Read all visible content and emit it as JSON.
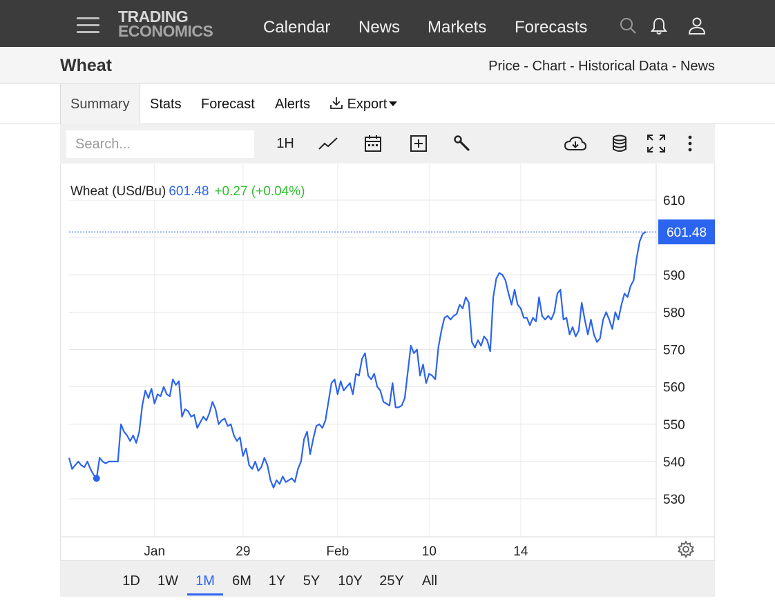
{
  "nav": {
    "logo_line1": "TRADING",
    "logo_line2": "ECONOMICS",
    "links": [
      "Calendar",
      "News",
      "Markets",
      "Forecasts"
    ]
  },
  "header": {
    "title": "Wheat",
    "subnav": "Price - Chart - Historical Data - News"
  },
  "tabs": {
    "summary": "Summary",
    "stats": "Stats",
    "forecast": "Forecast",
    "alerts": "Alerts",
    "export": "Export"
  },
  "toolbar": {
    "search_placeholder": "Search...",
    "interval": "1H"
  },
  "legend": {
    "name": "Wheat (USd/Bu)",
    "value": "601.48",
    "change": "+0.27 (+0.04%)"
  },
  "ranges": [
    "1D",
    "1W",
    "1M",
    "6M",
    "1Y",
    "5Y",
    "10Y",
    "25Y",
    "All"
  ],
  "active_range": "1M",
  "colors": {
    "line": "#2b64ee",
    "change": "#2fbf2f",
    "nav_bg": "#3c3c3c"
  },
  "chart_data": {
    "type": "line",
    "ylim": [
      520,
      620
    ],
    "yticks": [
      530,
      540,
      550,
      560,
      570,
      580,
      590,
      600,
      610
    ],
    "yticks_labeled": [
      "530",
      "540",
      "550",
      "560",
      "570",
      "580",
      "590",
      "610"
    ],
    "x_tick_labels": [
      "Jan",
      "29",
      "Feb",
      "10",
      "14"
    ],
    "x_tick_index": [
      28,
      57,
      88,
      118,
      148
    ],
    "last_value_label": "601.48",
    "last_value": 601.48,
    "series": [
      {
        "values": [
          541,
          538,
          539,
          540,
          539,
          538.5,
          540,
          538,
          536.5,
          535.5,
          541,
          540,
          539.5,
          540,
          540,
          540,
          540,
          550,
          548,
          547,
          545.5,
          547,
          545,
          548,
          555,
          559,
          557,
          559.5,
          555.5,
          558,
          557.5,
          560,
          558,
          557.5,
          562,
          560.5,
          561.5,
          552,
          554,
          553.5,
          552,
          552.5,
          549,
          550.5,
          552,
          551,
          553,
          556,
          554,
          550,
          551,
          551.5,
          549.5,
          550,
          547,
          545.5,
          546.5,
          541.5,
          543.5,
          539,
          538,
          540,
          537.5,
          538.5,
          541,
          539,
          535,
          533,
          535,
          534,
          536,
          534.5,
          535,
          535.5,
          534.5,
          538,
          540,
          546,
          548,
          542,
          546,
          549.5,
          550,
          549,
          551,
          556,
          561,
          562,
          558,
          561.5,
          559,
          560,
          561,
          558,
          563.5,
          563,
          567.5,
          569,
          563,
          562,
          563.5,
          560,
          559,
          556,
          555.5,
          555,
          561,
          554.5,
          554.5,
          555,
          557,
          564,
          571,
          569,
          570,
          563,
          566,
          561,
          563.5,
          563,
          562,
          570.5,
          575,
          578.5,
          579,
          578,
          579,
          579.5,
          582,
          581,
          584,
          582.5,
          572,
          570.5,
          572.5,
          571,
          573.5,
          572.5,
          569.5,
          584,
          589,
          590.5,
          590,
          588.5,
          585,
          582,
          586,
          582,
          581,
          578.5,
          578.5,
          576.5,
          578.5,
          577.5,
          584,
          579,
          578,
          579,
          578,
          580,
          585,
          586,
          578,
          578.5,
          574,
          576,
          573.5,
          575,
          582.5,
          578,
          574,
          578,
          574,
          572,
          573,
          578,
          580,
          578,
          575.5,
          580,
          578,
          582,
          585,
          584,
          587,
          588.5,
          594.5,
          599,
          601,
          601.48
        ]
      }
    ]
  }
}
